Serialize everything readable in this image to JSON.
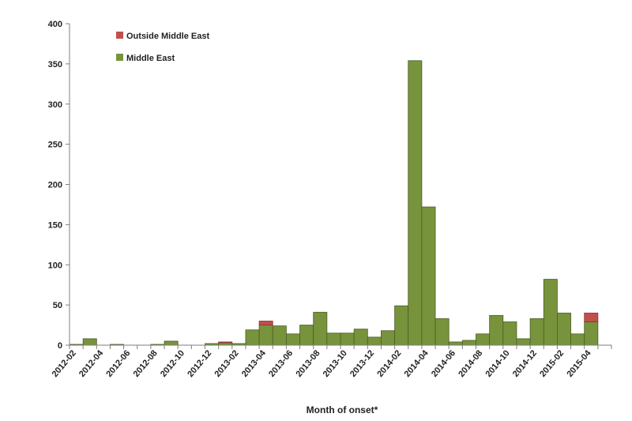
{
  "chart_data": {
    "type": "bar",
    "stacked": true,
    "xlabel": "Month of onset*",
    "ylabel": "",
    "ylim": [
      0,
      400
    ],
    "yticks": [
      0,
      50,
      100,
      150,
      200,
      250,
      300,
      350,
      400
    ],
    "grid": false,
    "legend_position": "top-left",
    "categories": [
      "2012-02",
      "2012-03",
      "2012-04",
      "2012-05",
      "2012-06",
      "2012-07",
      "2012-08",
      "2012-09",
      "2012-10",
      "2012-11",
      "2012-12",
      "2013-01",
      "2013-02",
      "2013-03",
      "2013-04",
      "2013-05",
      "2013-06",
      "2013-07",
      "2013-08",
      "2013-09",
      "2013-10",
      "2013-11",
      "2013-12",
      "2014-01",
      "2014-02",
      "2014-03",
      "2014-04",
      "2014-05",
      "2014-06",
      "2014-07",
      "2014-08",
      "2014-09",
      "2014-10",
      "2014-11",
      "2014-12",
      "2015-01",
      "2015-02",
      "2015-03",
      "2015-04",
      "2015-05"
    ],
    "tick_labels": [
      "2012-02",
      "2012-04",
      "2012-06",
      "2012-08",
      "2012-10",
      "2012-12",
      "2013-02",
      "2013-04",
      "2013-06",
      "2013-08",
      "2013-10",
      "2013-12",
      "2014-02",
      "2014-04",
      "2014-06",
      "2014-08",
      "2014-10",
      "2014-12",
      "2015-02",
      "2015-04"
    ],
    "series": [
      {
        "name": "Middle East",
        "color": "#77933c",
        "values": [
          1,
          8,
          0,
          1,
          0,
          0,
          1,
          5,
          0,
          0,
          2,
          3,
          2,
          19,
          25,
          24,
          14,
          25,
          41,
          15,
          15,
          20,
          10,
          18,
          49,
          354,
          172,
          33,
          4,
          6,
          14,
          37,
          29,
          8,
          33,
          82,
          40,
          14,
          29,
          0
        ]
      },
      {
        "name": "Outside Middle East",
        "color": "#c0504d",
        "values": [
          0,
          0,
          0,
          0,
          0,
          0,
          0,
          0,
          0,
          0,
          0,
          1,
          0,
          0,
          5,
          0,
          0,
          0,
          0,
          0,
          0,
          0,
          0,
          0,
          0,
          0,
          0,
          0,
          0,
          0,
          0,
          0,
          0,
          0,
          0,
          0,
          0,
          0,
          11,
          0
        ]
      }
    ]
  }
}
